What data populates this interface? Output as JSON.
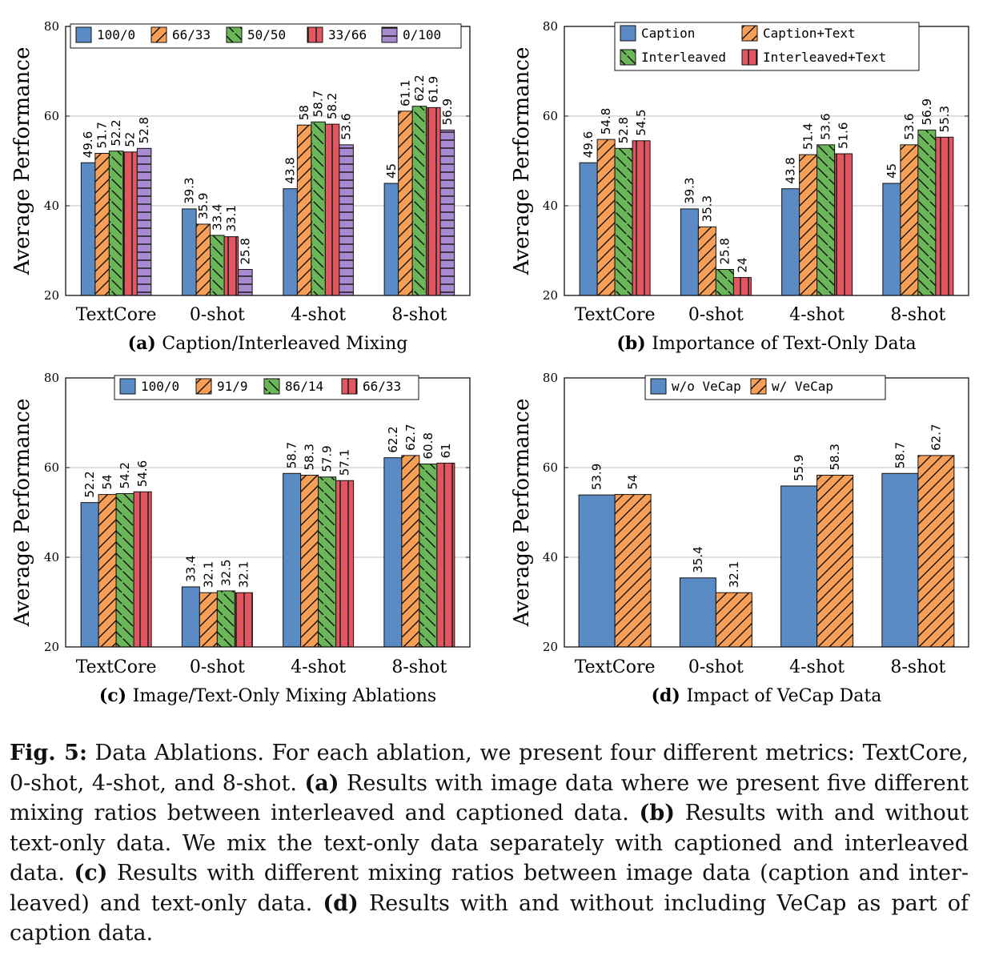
{
  "figure_caption": {
    "label": "Fig. 5:",
    "text1": " Data Ablations. For each ablation, we present four different metrics: TextCore, 0-shot, 4-shot, and 8-shot. ",
    "a_label": "(a)",
    "text_a": " Results with image data where we present five different mixing ratios between interleaved and captioned data. ",
    "b_label": "(b)",
    "text_b": " Results with and without text-only data. We mix the text-only data separately with captioned and interleaved data. ",
    "c_label": "(c)",
    "text_c": " Results with different mixing ratios between image data (caption and inter-leaved) and text-only data. ",
    "d_label": "(d)",
    "text_d": " Results with and without including VeCap as part of caption data."
  },
  "colors": {
    "blue": "#5b8bc4",
    "orange": "#f79e57",
    "green": "#6cb65a",
    "red": "#e05761",
    "purple": "#a88ad0",
    "grid": "#bdbdbd"
  },
  "chart_data": [
    {
      "type": "bar",
      "sublabel": "(a)",
      "subtitle": "Caption/Interleaved Mixing",
      "ylabel": "Average Performance",
      "ylim": [
        20,
        80
      ],
      "yticks": [
        20,
        40,
        60,
        80
      ],
      "categories": [
        "TextCore",
        "0-shot",
        "4-shot",
        "8-shot"
      ],
      "legend_position": "top",
      "legend_columns": 5,
      "series": [
        {
          "name": "100/0",
          "color": "blue",
          "pattern": "none",
          "values": [
            49.6,
            39.3,
            43.8,
            45
          ]
        },
        {
          "name": "66/33",
          "color": "orange",
          "pattern": "north-east",
          "values": [
            51.7,
            35.9,
            58,
            61.1
          ]
        },
        {
          "name": "50/50",
          "color": "green",
          "pattern": "north-west",
          "values": [
            52.2,
            33.4,
            58.7,
            62.2
          ]
        },
        {
          "name": "33/66",
          "color": "red",
          "pattern": "vertical",
          "values": [
            52,
            33.1,
            58.2,
            61.9
          ]
        },
        {
          "name": "0/100",
          "color": "purple",
          "pattern": "horizontal",
          "values": [
            52.8,
            25.8,
            53.6,
            56.9
          ]
        }
      ]
    },
    {
      "type": "bar",
      "sublabel": "(b)",
      "subtitle": "Importance of Text-Only Data",
      "ylabel": "Average Performance",
      "ylim": [
        20,
        80
      ],
      "yticks": [
        20,
        40,
        60,
        80
      ],
      "categories": [
        "TextCore",
        "0-shot",
        "4-shot",
        "8-shot"
      ],
      "legend_position": "top",
      "legend_columns": 2,
      "series": [
        {
          "name": "Caption",
          "color": "blue",
          "pattern": "none",
          "values": [
            49.6,
            39.3,
            43.8,
            45
          ]
        },
        {
          "name": "Caption+Text",
          "color": "orange",
          "pattern": "north-east",
          "values": [
            54.8,
            35.3,
            51.4,
            53.6
          ]
        },
        {
          "name": "Interleaved",
          "color": "green",
          "pattern": "north-west",
          "values": [
            52.8,
            25.8,
            53.6,
            56.9
          ]
        },
        {
          "name": "Interleaved+Text",
          "color": "red",
          "pattern": "vertical",
          "values": [
            54.5,
            24,
            51.6,
            55.3
          ]
        }
      ]
    },
    {
      "type": "bar",
      "sublabel": "(c)",
      "subtitle": "Image/Text-Only Mixing Ablations",
      "ylabel": "Average Performance",
      "ylim": [
        20,
        80
      ],
      "yticks": [
        20,
        40,
        60,
        80
      ],
      "categories": [
        "TextCore",
        "0-shot",
        "4-shot",
        "8-shot"
      ],
      "legend_position": "top",
      "legend_columns": 4,
      "series": [
        {
          "name": "100/0",
          "color": "blue",
          "pattern": "none",
          "values": [
            52.2,
            33.4,
            58.7,
            62.2
          ]
        },
        {
          "name": "91/9",
          "color": "orange",
          "pattern": "north-east",
          "values": [
            54,
            32.1,
            58.3,
            62.7
          ]
        },
        {
          "name": "86/14",
          "color": "green",
          "pattern": "north-west",
          "values": [
            54.2,
            32.5,
            57.9,
            60.8
          ]
        },
        {
          "name": "66/33",
          "color": "red",
          "pattern": "vertical",
          "values": [
            54.6,
            32.1,
            57.1,
            61
          ]
        }
      ]
    },
    {
      "type": "bar",
      "sublabel": "(d)",
      "subtitle": "Impact of VeCap Data",
      "ylabel": "Average Performance",
      "ylim": [
        20,
        80
      ],
      "yticks": [
        20,
        40,
        60,
        80
      ],
      "categories": [
        "TextCore",
        "0-shot",
        "4-shot",
        "8-shot"
      ],
      "legend_position": "top",
      "legend_columns": 2,
      "series": [
        {
          "name": "w/o VeCap",
          "color": "blue",
          "pattern": "none",
          "values": [
            53.9,
            35.4,
            55.9,
            58.7
          ]
        },
        {
          "name": "w/ VeCap",
          "color": "orange",
          "pattern": "north-east",
          "values": [
            54,
            32.1,
            58.3,
            62.7
          ]
        }
      ]
    }
  ]
}
